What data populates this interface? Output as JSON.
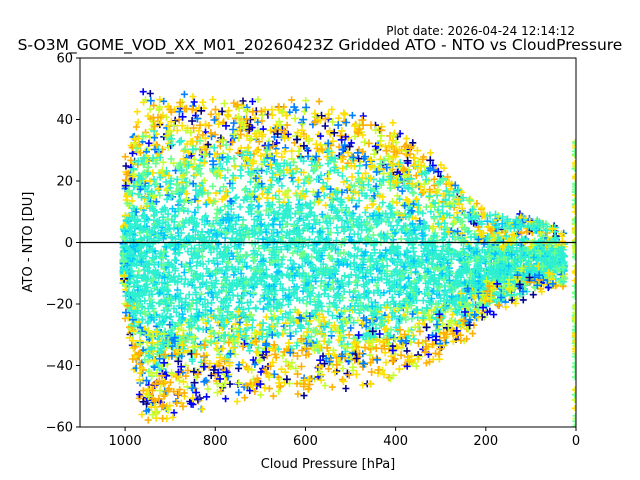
{
  "chart_data": {
    "type": "scatter",
    "marker": "plus",
    "plot_date": "Plot date: 2026-04-24 12:14:12",
    "title": "S-O3M_GOME_VOD_XX_M01_20260423Z Gridded ATO - NTO vs CloudPressure",
    "xlabel": "Cloud Pressure [hPa]",
    "ylabel": "ATO - NTO [DU]",
    "xlim": [
      1100,
      0
    ],
    "ylim": [
      -60,
      60
    ],
    "xticks": [
      1000,
      800,
      600,
      400,
      200,
      0
    ],
    "yticks": [
      -60,
      -40,
      -20,
      0,
      20,
      40,
      60
    ],
    "reference_line_y": 0,
    "colormap": [
      "#00008b",
      "#0000ff",
      "#0080ff",
      "#00c8ff",
      "#2ef0d0",
      "#6cff8c",
      "#c8ff30",
      "#ffe000",
      "#ffb000"
    ],
    "density_envelope": [
      {
        "pressure": 1000,
        "ymin": -25,
        "ymax": 25
      },
      {
        "pressure": 960,
        "ymin": -58,
        "ymax": 48
      },
      {
        "pressure": 900,
        "ymin": -55,
        "ymax": 46
      },
      {
        "pressure": 800,
        "ymin": -50,
        "ymax": 46
      },
      {
        "pressure": 700,
        "ymin": -48,
        "ymax": 45
      },
      {
        "pressure": 600,
        "ymin": -47,
        "ymax": 44
      },
      {
        "pressure": 500,
        "ymin": -46,
        "ymax": 42
      },
      {
        "pressure": 400,
        "ymin": -42,
        "ymax": 36
      },
      {
        "pressure": 300,
        "ymin": -35,
        "ymax": 24
      },
      {
        "pressure": 250,
        "ymin": -30,
        "ymax": 16
      },
      {
        "pressure": 200,
        "ymin": -22,
        "ymax": 10
      },
      {
        "pressure": 150,
        "ymin": -18,
        "ymax": 8
      },
      {
        "pressure": 100,
        "ymin": -15,
        "ymax": 8
      },
      {
        "pressure": 50,
        "ymin": -12,
        "ymax": 6
      }
    ],
    "edge_column": {
      "pressure": 1,
      "ymin": -60,
      "ymax": 33
    }
  }
}
